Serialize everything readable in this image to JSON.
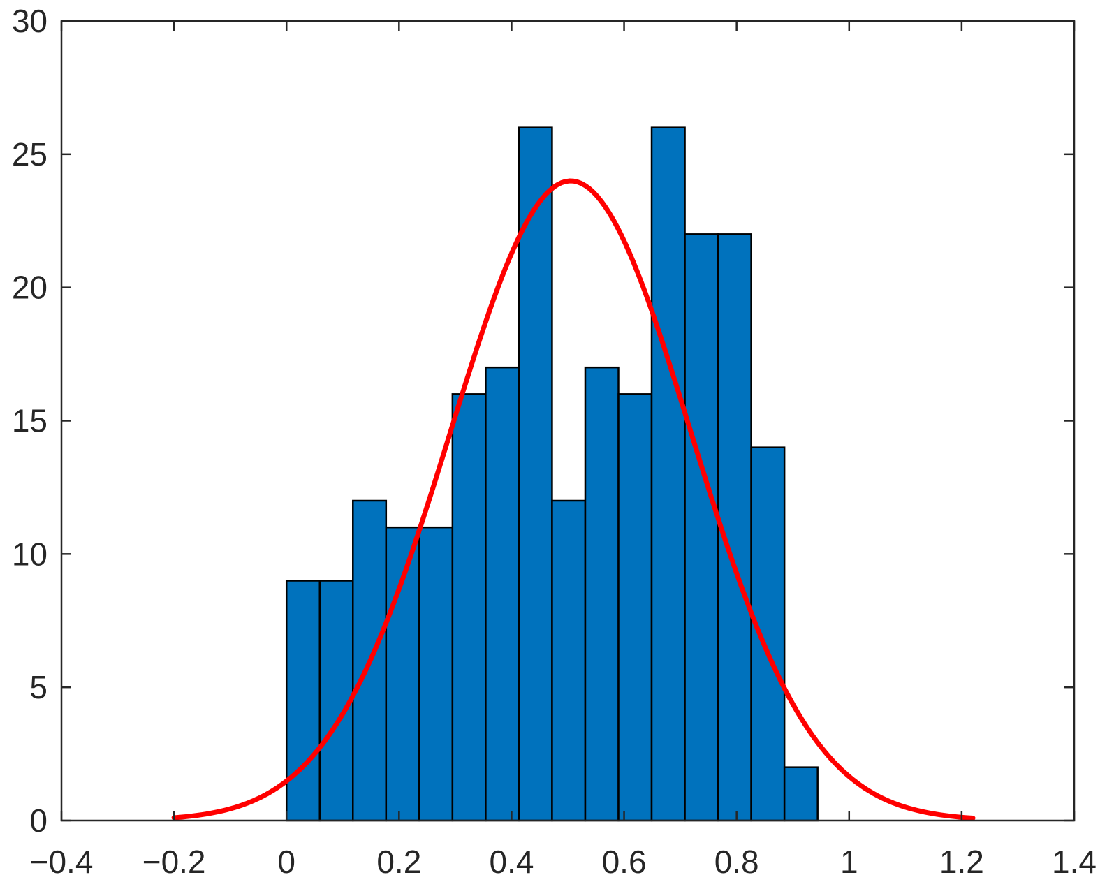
{
  "chart_data": {
    "type": "bar",
    "subtype": "histogram-with-normal-fit",
    "title": "",
    "xlabel": "",
    "ylabel": "",
    "xlim": [
      -0.4,
      1.4
    ],
    "ylim": [
      0,
      30
    ],
    "xticks": [
      -0.4,
      -0.2,
      0,
      0.2,
      0.4,
      0.6,
      0.8,
      1,
      1.2,
      1.4
    ],
    "xtick_labels": [
      "−0.4",
      "−0.2",
      "0",
      "0.2",
      "0.4",
      "0.6",
      "0.8",
      "1",
      "1.2",
      "1.4"
    ],
    "yticks": [
      0,
      5,
      10,
      15,
      20,
      25,
      30
    ],
    "ytick_labels": [
      "0",
      "5",
      "10",
      "15",
      "20",
      "25",
      "30"
    ],
    "grid": false,
    "histogram": {
      "bin_edges": [
        0.0,
        0.059,
        0.118,
        0.177,
        0.236,
        0.295,
        0.354,
        0.413,
        0.472,
        0.531,
        0.59,
        0.649,
        0.708,
        0.767,
        0.826,
        0.885,
        0.944
      ],
      "counts": [
        9,
        9,
        12,
        11,
        11,
        16,
        17,
        26,
        12,
        17,
        16,
        26,
        22,
        22,
        14,
        2
      ],
      "color": "#0072BD",
      "edge_color": "#000000"
    },
    "fit_curve": {
      "type": "normal",
      "x_range": [
        -0.2,
        1.22
      ],
      "peak_x": 0.505,
      "peak_y": 24,
      "sigma": 0.214,
      "color": "#ff0000"
    }
  }
}
